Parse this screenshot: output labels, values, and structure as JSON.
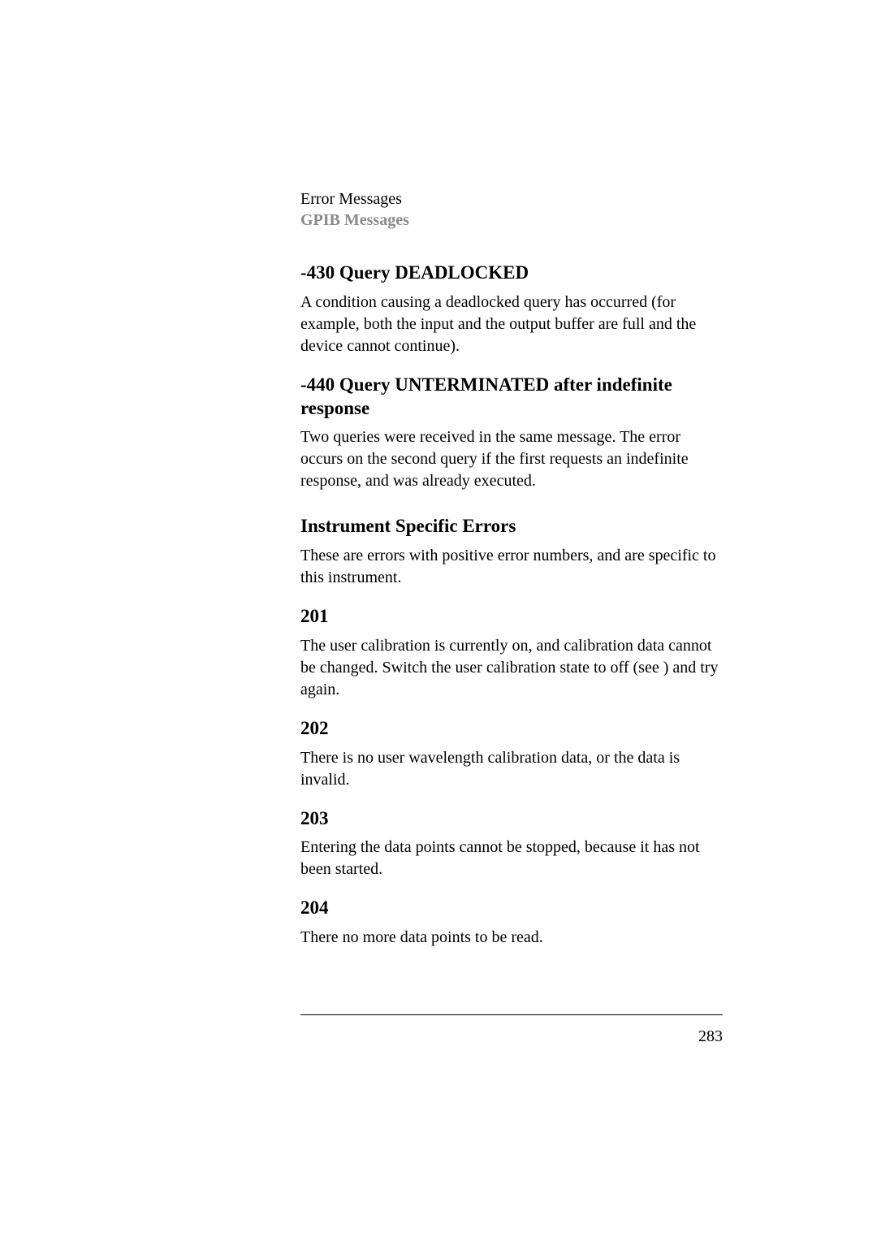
{
  "header": {
    "line1": "Error Messages",
    "line2": "GPIB Messages"
  },
  "sections": [
    {
      "heading": "-430 Query DEADLOCKED",
      "body": "A condition causing a deadlocked query has occurred (for example, both the input and the output buffer are full and the device cannot continue)."
    },
    {
      "heading": "-440 Query UNTERMINATED after indefinite response",
      "body": "Two queries were received in the same message. The error occurs on the second query if the first requests an indefinite response, and was already executed."
    },
    {
      "heading": "Instrument Specific Errors",
      "big": true,
      "body": "These are errors with positive error numbers, and are specific to this instrument."
    },
    {
      "heading": "201",
      "body": "The user calibration is currently on, and calibration data cannot be changed. Switch the user calibration state to off (see ) and try again."
    },
    {
      "heading": "202",
      "body": "There is no user wavelength calibration data, or the data is invalid."
    },
    {
      "heading": "203",
      "body": "Entering the data points cannot be stopped, because it has not been started."
    },
    {
      "heading": "204",
      "body": "There no more data points to be read."
    }
  ],
  "pageNumber": "283"
}
